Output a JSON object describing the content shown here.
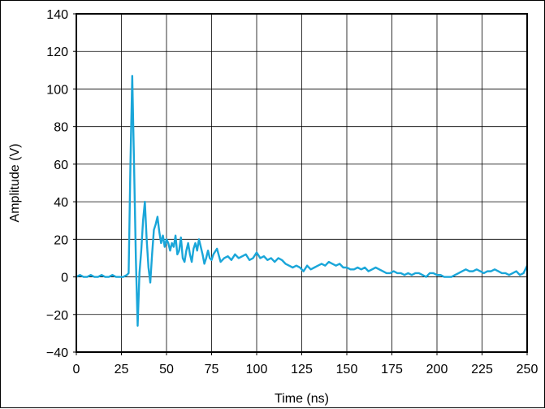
{
  "chart_data": {
    "type": "line",
    "title": "",
    "xlabel": "Time (ns)",
    "ylabel": "Amplitude (V)",
    "xlim": [
      0,
      250
    ],
    "ylim": [
      -40,
      140
    ],
    "x_ticks": [
      0,
      25,
      50,
      75,
      100,
      125,
      150,
      175,
      200,
      225,
      250
    ],
    "y_ticks": [
      -40,
      -20,
      0,
      20,
      40,
      60,
      80,
      100,
      120,
      140
    ],
    "x_tick_labels": [
      "0",
      "25",
      "50",
      "75",
      "100",
      "125",
      "150",
      "175",
      "200",
      "225",
      "250"
    ],
    "y_tick_labels": [
      "−40",
      "−20",
      "0",
      "20",
      "40",
      "60",
      "80",
      "100",
      "120",
      "140"
    ],
    "grid": true,
    "line_color": "#1aa6d9",
    "series": [
      {
        "x": [
          0,
          2,
          4,
          6,
          8,
          10,
          12,
          14,
          16,
          18,
          20,
          22,
          24,
          26,
          28,
          29,
          30,
          31,
          32,
          33,
          34,
          35,
          36,
          37,
          38,
          39,
          40,
          41,
          42,
          43,
          44,
          45,
          46,
          47,
          48,
          49,
          50,
          51,
          52,
          53,
          54,
          55,
          56,
          57,
          58,
          59,
          60,
          61,
          62,
          63,
          64,
          65,
          66,
          67,
          68,
          69,
          70,
          71,
          72,
          73,
          74,
          75,
          76,
          78,
          80,
          82,
          84,
          86,
          88,
          90,
          92,
          94,
          96,
          98,
          100,
          102,
          104,
          106,
          108,
          110,
          112,
          114,
          116,
          118,
          120,
          122,
          124,
          126,
          128,
          130,
          132,
          134,
          136,
          138,
          140,
          142,
          144,
          146,
          148,
          150,
          152,
          154,
          156,
          158,
          160,
          162,
          164,
          166,
          168,
          170,
          172,
          174,
          176,
          178,
          180,
          182,
          184,
          186,
          188,
          190,
          192,
          194,
          196,
          198,
          200,
          202,
          204,
          206,
          208,
          210,
          212,
          214,
          216,
          218,
          220,
          222,
          224,
          226,
          228,
          230,
          232,
          234,
          236,
          238,
          240,
          242,
          244,
          246,
          248,
          250
        ],
        "y": [
          0,
          1,
          0,
          0,
          1,
          0,
          0,
          1,
          0,
          0,
          1,
          0,
          0,
          0,
          1,
          2,
          60,
          107,
          60,
          10,
          -26,
          2,
          14,
          30,
          40,
          20,
          5,
          -3,
          12,
          25,
          28,
          32,
          24,
          18,
          22,
          16,
          20,
          18,
          14,
          18,
          16,
          22,
          12,
          14,
          21,
          10,
          8,
          14,
          18,
          12,
          8,
          15,
          18,
          14,
          20,
          16,
          12,
          7,
          10,
          14,
          10,
          9,
          12,
          15,
          8,
          10,
          11,
          9,
          12,
          10,
          11,
          12,
          9,
          10,
          13,
          10,
          11,
          9,
          10,
          8,
          10,
          9,
          7,
          6,
          5,
          6,
          5,
          3,
          6,
          4,
          5,
          6,
          7,
          6,
          8,
          7,
          6,
          7,
          5,
          5,
          4,
          4,
          5,
          4,
          5,
          3,
          4,
          5,
          4,
          3,
          2,
          2,
          3,
          2,
          2,
          1,
          2,
          1,
          2,
          2,
          1,
          0,
          2,
          2,
          1,
          1,
          0,
          0,
          0,
          1,
          2,
          3,
          4,
          3,
          3,
          4,
          3,
          2,
          3,
          3,
          4,
          3,
          2,
          2,
          1,
          2,
          3,
          1,
          2,
          6
        ]
      }
    ]
  }
}
